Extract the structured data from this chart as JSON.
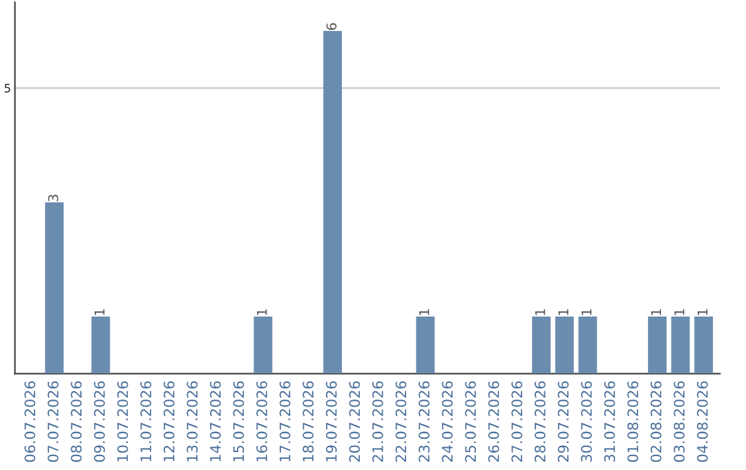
{
  "chart_data": {
    "type": "bar",
    "categories": [
      "06.07.2026",
      "07.07.2026",
      "08.07.2026",
      "09.07.2026",
      "10.07.2026",
      "11.07.2026",
      "12.07.2026",
      "13.07.2026",
      "14.07.2026",
      "15.07.2026",
      "16.07.2026",
      "17.07.2026",
      "18.07.2026",
      "19.07.2026",
      "20.07.2026",
      "21.07.2026",
      "22.07.2026",
      "23.07.2026",
      "24.07.2026",
      "25.07.2026",
      "26.07.2026",
      "27.07.2026",
      "28.07.2026",
      "29.07.2026",
      "30.07.2026",
      "31.07.2026",
      "01.08.2026",
      "02.08.2026",
      "03.08.2026",
      "04.08.2026"
    ],
    "values": [
      0,
      3,
      0,
      1,
      0,
      0,
      0,
      0,
      0,
      0,
      1,
      0,
      0,
      6,
      0,
      0,
      0,
      1,
      0,
      0,
      0,
      0,
      1,
      1,
      1,
      0,
      0,
      1,
      1,
      1
    ],
    "value_labels": [
      null,
      "3",
      null,
      "1",
      null,
      null,
      null,
      null,
      null,
      null,
      "1",
      null,
      null,
      "6",
      null,
      null,
      null,
      "1",
      null,
      null,
      null,
      null,
      "1",
      "1",
      "1",
      null,
      null,
      "1",
      "1",
      "1"
    ],
    "color": "#6a8caf",
    "ylim": [
      0,
      6.5
    ],
    "yticks": [
      5
    ],
    "grid": "y"
  }
}
